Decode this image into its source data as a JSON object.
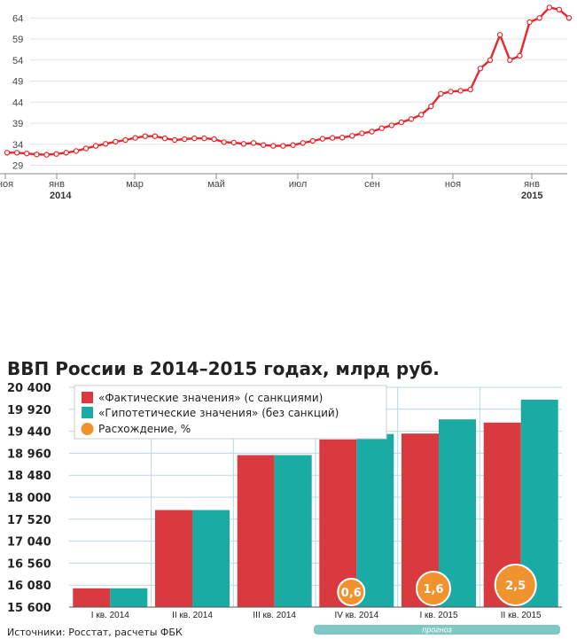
{
  "chart_data": [
    {
      "type": "line",
      "title": "",
      "xlabel": "",
      "ylabel": "",
      "yticks": [
        "29",
        "34",
        "39",
        "44",
        "49",
        "54",
        "59",
        "64"
      ],
      "ylim": [
        27,
        67
      ],
      "xticks": [
        "ноя",
        "янв",
        "мар",
        "май",
        "июл",
        "сен",
        "ноя",
        "янв"
      ],
      "years": [
        "2014",
        "2015"
      ],
      "grid": true,
      "color": "#e8262b",
      "values": [
        32,
        32,
        31.8,
        31.6,
        31.5,
        31.7,
        32,
        32.4,
        33,
        33.6,
        34.1,
        34.6,
        35,
        35.5,
        35.9,
        35.9,
        35.4,
        35,
        35.2,
        35.4,
        35.4,
        35.2,
        34.5,
        34.4,
        34.1,
        34.3,
        33.8,
        33.6,
        33.6,
        33.8,
        34.3,
        34.8,
        35.3,
        35.5,
        35.6,
        36,
        36.6,
        37,
        37.8,
        38.5,
        39.2,
        40,
        41,
        43,
        46,
        46.5,
        46.7,
        47,
        52,
        54,
        60,
        54,
        55,
        63,
        64,
        66.5,
        66,
        64
      ]
    },
    {
      "type": "bar",
      "title": "ВВП России в 2014–2015 годах, млрд руб.",
      "categories": [
        "I кв. 2014",
        "II кв. 2014",
        "III кв. 2014",
        "IV кв. 2014",
        "I кв. 2015",
        "II кв. 2015"
      ],
      "series": [
        {
          "name": "«Фактические значения» (с санкциями)",
          "color": "#d93a3f",
          "values": [
            16010,
            17720,
            18920,
            19260,
            19390,
            19630
          ]
        },
        {
          "name": "«Гипотетические значения» (без санкций)",
          "color": "#1aaba5",
          "values": [
            16010,
            17720,
            18920,
            19380,
            19700,
            20130
          ]
        }
      ],
      "divergence": {
        "name": "Расхождение, %",
        "color": "#f0922e",
        "values": [
          "0,6",
          "1,6",
          "2,5"
        ],
        "categories": [
          "IV кв. 2014",
          "I кв. 2015",
          "II кв. 2015"
        ]
      },
      "yticks": [
        "20 400",
        "19 920",
        "19 440",
        "18 960",
        "18 480",
        "18 000",
        "17 520",
        "17 040",
        "16 560",
        "16 080",
        "15 600"
      ],
      "ylim": [
        15600,
        20400
      ],
      "grid": true,
      "forecast_label": "прогноз",
      "source": "Источники: Росстат, расчеты ФБК"
    }
  ]
}
